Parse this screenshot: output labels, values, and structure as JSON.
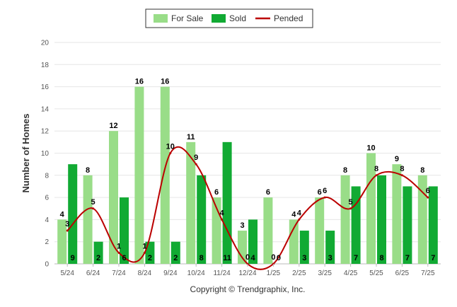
{
  "chart_data": {
    "type": "bar",
    "ylabel": "Number of Homes",
    "ylim": [
      0,
      20
    ],
    "yticks": [
      0,
      2,
      4,
      6,
      8,
      10,
      12,
      14,
      16,
      18,
      20
    ],
    "categories": [
      "5/24",
      "6/24",
      "7/24",
      "8/24",
      "9/24",
      "10/24",
      "11/24",
      "12/24",
      "1/25",
      "2/25",
      "3/25",
      "4/25",
      "5/25",
      "6/25",
      "7/25"
    ],
    "series": [
      {
        "name": "For Sale",
        "type": "bar",
        "color": "#99dd88",
        "values": [
          4,
          8,
          12,
          16,
          16,
          11,
          6,
          3,
          6,
          4,
          6,
          8,
          10,
          9,
          8
        ]
      },
      {
        "name": "Sold",
        "type": "bar",
        "color": "#11aa33",
        "values": [
          9,
          2,
          6,
          2,
          2,
          8,
          11,
          4,
          0,
          3,
          3,
          7,
          8,
          7,
          7
        ]
      },
      {
        "name": "Pended",
        "type": "line",
        "color": "#bb0000",
        "values": [
          3,
          5,
          1,
          1,
          10,
          9,
          4,
          0,
          0,
          4,
          6,
          5,
          8,
          8,
          6
        ]
      }
    ],
    "legend_position": "top-center",
    "grid": true
  },
  "credit": "Copyright © Trendgraphix, Inc."
}
